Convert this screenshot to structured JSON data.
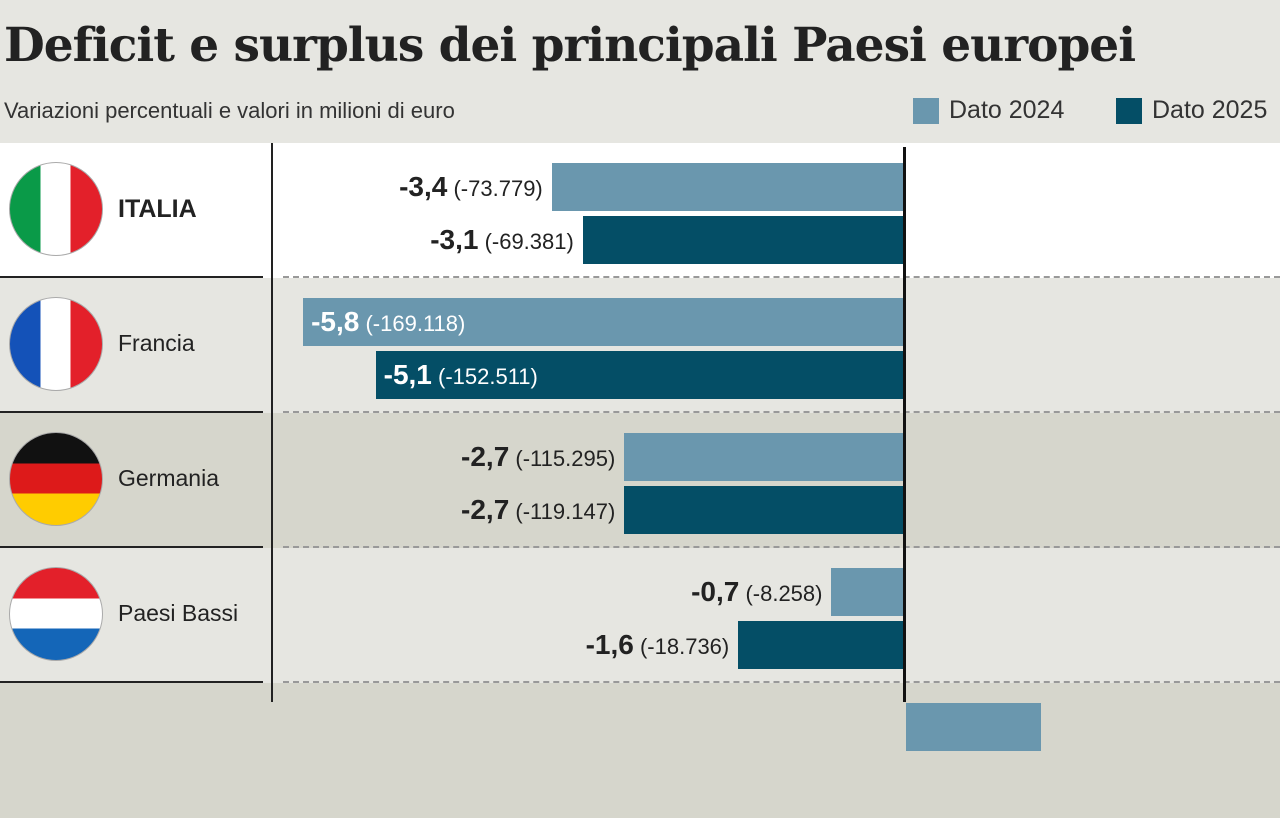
{
  "chart_data": {
    "type": "bar",
    "title": "Deficit e surplus dei principali Paesi europei",
    "subtitle": "Variazioni percentuali e valori in milioni di euro",
    "legend": [
      {
        "name": "Dato 2024",
        "color": "#6a97ae"
      },
      {
        "name": "Dato 2025",
        "color": "#044e66"
      }
    ],
    "legend_position": "top-right",
    "categories": [
      "ITALIA",
      "Francia",
      "Germania",
      "Paesi Bassi",
      ""
    ],
    "series": [
      {
        "name": "Dato 2024",
        "values": [
          -3.4,
          -5.8,
          -2.7,
          -0.7,
          1.3
        ],
        "labels": [
          "-3,4",
          "-5,8",
          "-2,7",
          "-0,7",
          ""
        ],
        "amounts": [
          "(-73.779)",
          "(-169.118)",
          "(-115.295)",
          "(-8.258)",
          ""
        ]
      },
      {
        "name": "Dato 2025",
        "values": [
          -3.1,
          -5.1,
          -2.7,
          -1.6,
          null
        ],
        "labels": [
          "-3,1",
          "-5,1",
          "-2,7",
          "-1,6",
          ""
        ],
        "amounts": [
          "(-69.381)",
          "(-152.511)",
          "(-119.147)",
          "(-18.736)",
          ""
        ]
      }
    ]
  }
}
